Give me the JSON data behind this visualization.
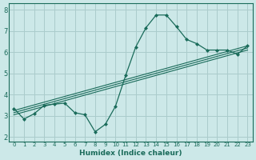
{
  "xlabel": "Humidex (Indice chaleur)",
  "background_color": "#cce8e8",
  "grid_color": "#aacccc",
  "line_color": "#1a6b5a",
  "xlim": [
    -0.5,
    23.5
  ],
  "ylim": [
    1.8,
    8.3
  ],
  "xticks": [
    0,
    1,
    2,
    3,
    4,
    5,
    6,
    7,
    8,
    9,
    10,
    11,
    12,
    13,
    14,
    15,
    16,
    17,
    18,
    19,
    20,
    21,
    22,
    23
  ],
  "yticks": [
    2,
    3,
    4,
    5,
    6,
    7,
    8
  ],
  "scatter_x": [
    0,
    1,
    2,
    3,
    4,
    5,
    6,
    7,
    8,
    9,
    10,
    11,
    12,
    13,
    14,
    15,
    16,
    17,
    18,
    19,
    20,
    21,
    22,
    23
  ],
  "scatter_y": [
    3.35,
    2.85,
    3.1,
    3.5,
    3.55,
    3.6,
    3.15,
    3.05,
    2.25,
    2.6,
    3.45,
    4.9,
    6.25,
    7.15,
    7.75,
    7.75,
    7.2,
    6.6,
    6.4,
    6.1,
    6.1,
    6.1,
    5.9,
    6.3
  ],
  "line1_x": [
    0,
    23
  ],
  "line1_y": [
    3.05,
    6.1
  ],
  "line2_x": [
    0,
    23
  ],
  "line2_y": [
    3.15,
    6.2
  ],
  "line3_x": [
    0,
    23
  ],
  "line3_y": [
    3.25,
    6.3
  ]
}
